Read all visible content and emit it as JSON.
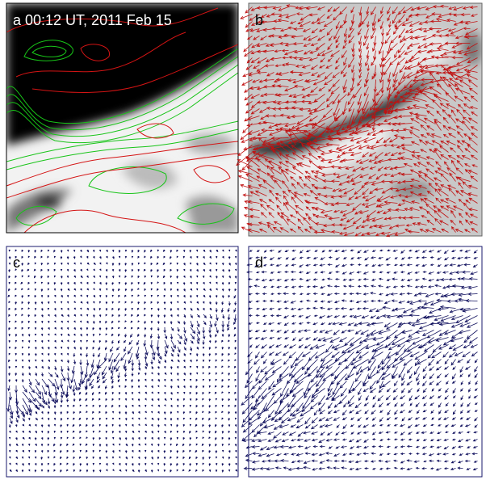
{
  "panels": [
    {
      "label": "a 00:12 UT, 2011 Feb 15"
    },
    {
      "label": "b"
    },
    {
      "label": "c"
    },
    {
      "label": "d"
    }
  ]
}
